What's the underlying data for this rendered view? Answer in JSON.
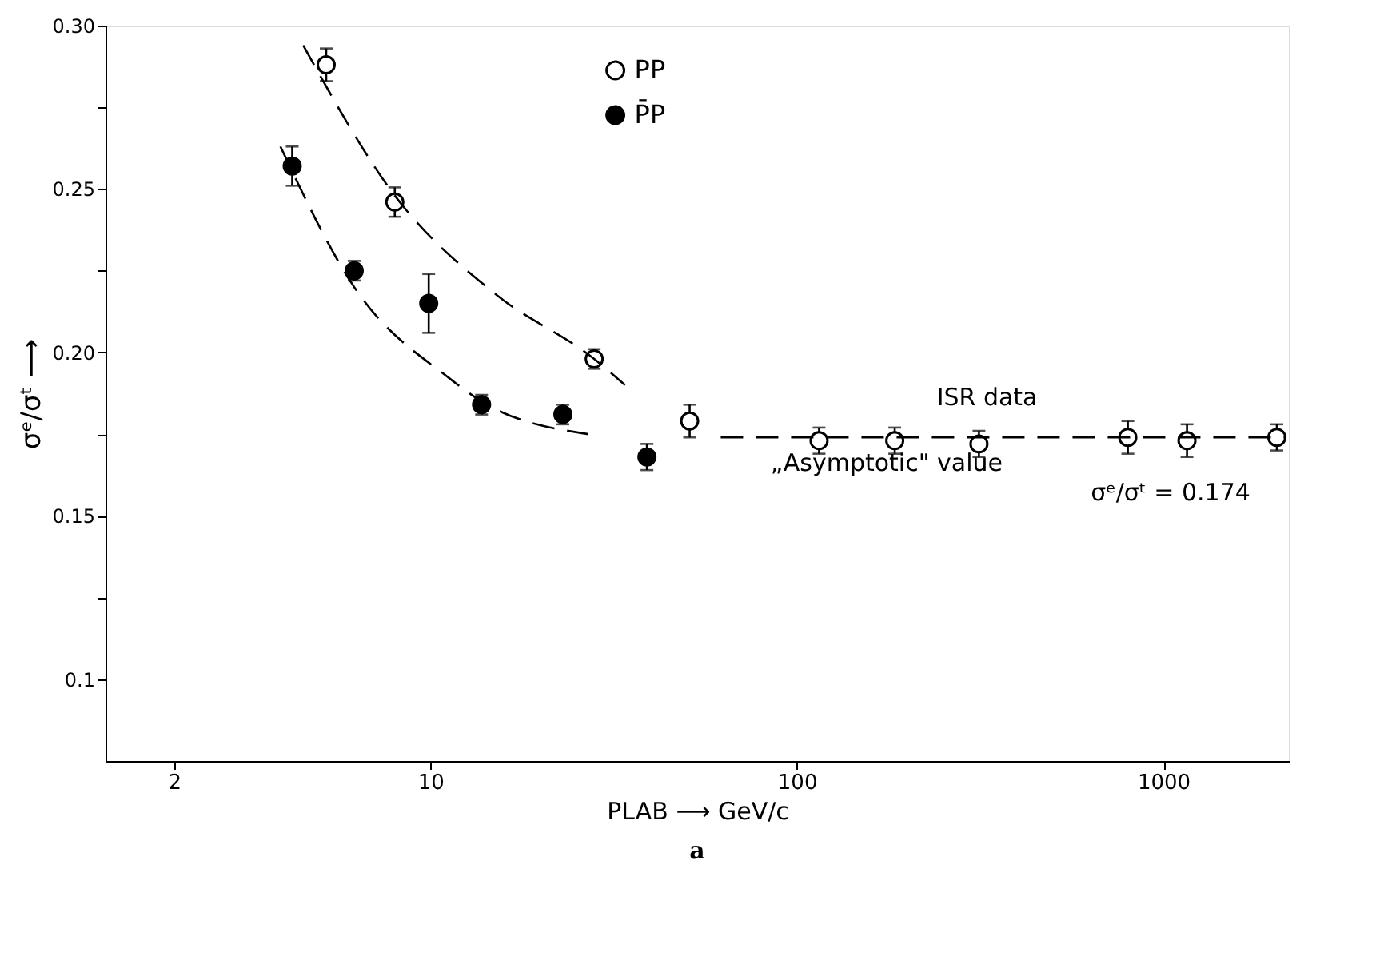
{
  "chart_data": {
    "type": "scatter",
    "xlabel": "PLAB ⟶ GeV/c",
    "ylabel": "σᵉ/σᵗ ⟶",
    "log": "x",
    "grid": false,
    "legend": "top",
    "xlim": [
      1.3,
      2200
    ],
    "xticks": [
      2,
      10,
      100,
      1000
    ],
    "ylim": [
      0.075,
      0.3
    ],
    "yticks": [
      0.1,
      {
        "value": 0.125,
        "label": null
      },
      0.15,
      {
        "value": 0.175,
        "label": null
      },
      {
        "value": 0.2,
        "label": "0.20"
      },
      {
        "value": 0.225,
        "label": null
      },
      0.25,
      {
        "value": 0.275,
        "label": null
      },
      {
        "value": 0.3,
        "label": "0.30"
      }
    ],
    "series": [
      {
        "name": "PP",
        "color": "#ffffff",
        "marker": "circle",
        "x": [
          5.2,
          8.0,
          28,
          51,
          115,
          185,
          314,
          800,
          1160,
          2040
        ],
        "values": [
          0.288,
          0.246,
          0.198,
          0.179,
          0.173,
          0.173,
          0.172,
          0.174,
          0.173,
          0.174
        ],
        "errors": [
          0.005,
          0.0045,
          0.003,
          0.005,
          0.004,
          0.004,
          0.004,
          0.005,
          0.005,
          0.004
        ]
      },
      {
        "name": "P̄P",
        "color": "#000000",
        "marker": "circle",
        "x": [
          4.2,
          6.2,
          9.9,
          13.8,
          23,
          39
        ],
        "values": [
          0.257,
          0.225,
          0.215,
          0.184,
          0.181,
          0.168
        ],
        "errors": [
          0.006,
          0.003,
          0.009,
          0.003,
          0.003,
          0.004
        ]
      },
      {
        "type": "line",
        "color": "#000000",
        "line_style": "dashed",
        "x": [
          4.5,
          8.0,
          15,
          28,
          34
        ],
        "values": [
          0.294,
          0.248,
          0.218,
          0.198,
          0.19
        ]
      },
      {
        "type": "line",
        "color": "#000000",
        "line_style": "dashed",
        "x": [
          3.9,
          6.2,
          11.3,
          13.8,
          27
        ],
        "values": [
          0.263,
          0.22,
          0.192,
          0.185,
          0.175
        ]
      },
      {
        "type": "line",
        "color": "#000000",
        "line_style": "dashed",
        "x": [
          62,
          2150
        ],
        "values": [
          0.174,
          0.174
        ]
      }
    ],
    "annotations": [
      "ISR data",
      "„Asymptotic\" value",
      "σᵉ/σᵗ = 0.174",
      "a"
    ]
  }
}
